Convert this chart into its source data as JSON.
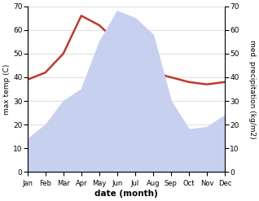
{
  "months": [
    "Jan",
    "Feb",
    "Mar",
    "Apr",
    "May",
    "Jun",
    "Jul",
    "Aug",
    "Sep",
    "Oct",
    "Nov",
    "Dec"
  ],
  "temperature": [
    39,
    42,
    50,
    66,
    62,
    55,
    43,
    42,
    40,
    38,
    37,
    38
  ],
  "precipitation": [
    14,
    20,
    30,
    35,
    55,
    68,
    65,
    58,
    30,
    18,
    19,
    24
  ],
  "temp_color": "#c0392b",
  "precip_fill_color": "#c8d0f0",
  "xlabel": "date (month)",
  "ylabel_left": "max temp (C)",
  "ylabel_right": "med. precipitation (kg/m2)",
  "ylim": [
    0,
    70
  ],
  "yticks": [
    0,
    10,
    20,
    30,
    40,
    50,
    60,
    70
  ],
  "bg_color": "#ffffff",
  "grid_color": "#d0d0d0",
  "temp_linewidth": 1.8
}
